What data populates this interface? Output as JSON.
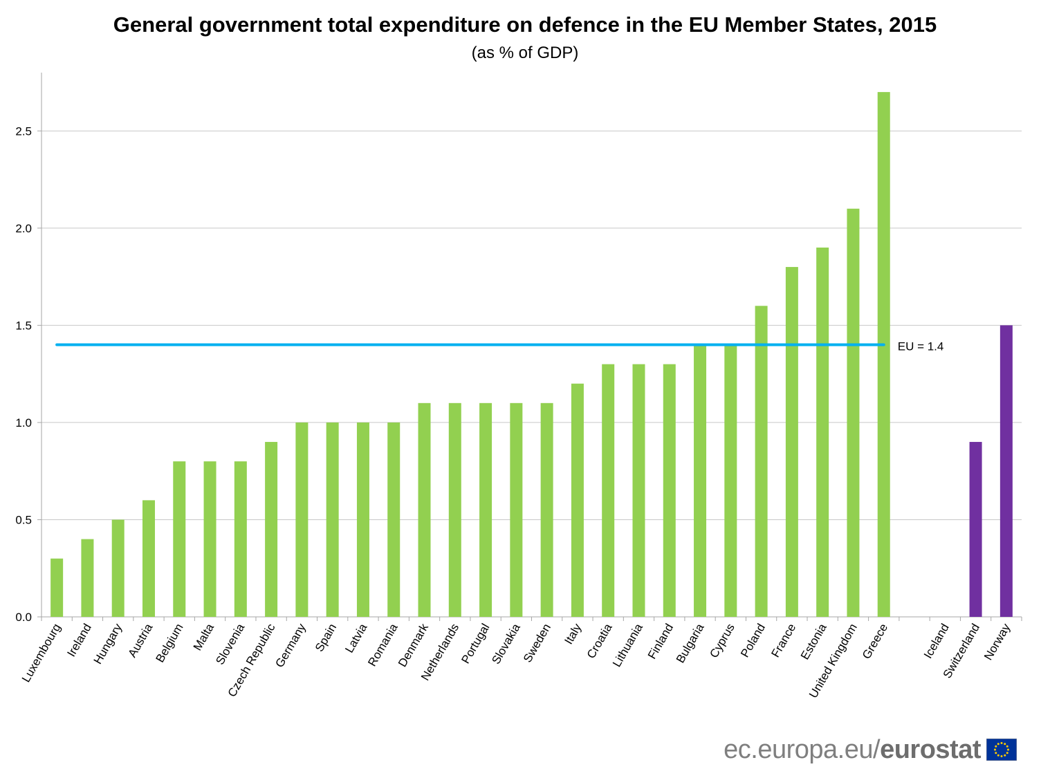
{
  "title": "General government total expenditure on defence in the EU Member States, 2015",
  "subtitle": "(as % of GDP)",
  "footer": {
    "site": "ec.europa.eu/",
    "brand": "eurostat",
    "logo_icon": "eu-flag-icon"
  },
  "colors": {
    "eu_bar": "#92d050",
    "non_eu_bar": "#7030a0",
    "reference_line": "#00b0f0",
    "grid": "#c8c8c8"
  },
  "chart_data": {
    "type": "bar",
    "title": "General government total expenditure on defence in the EU Member States, 2015",
    "subtitle": "(as % of GDP)",
    "xlabel": "",
    "ylabel": "",
    "ylim": [
      0,
      2.8
    ],
    "yticks": [
      0.0,
      0.5,
      1.0,
      1.5,
      2.0,
      2.5
    ],
    "ytick_labels": [
      "0.0",
      "0.5",
      "1.0",
      "1.5",
      "2.0",
      "2.5"
    ],
    "grid": true,
    "categories": [
      "Luxembourg",
      "Ireland",
      "Hungary",
      "Austria",
      "Belgium",
      "Malta",
      "Slovenia",
      "Czech Republic",
      "Germany",
      "Spain",
      "Latvia",
      "Romania",
      "Denmark",
      "Netherlands",
      "Portugal",
      "Slovakia",
      "Sweden",
      "Italy",
      "Croatia",
      "Lithuania",
      "Finland",
      "Bulgaria",
      "Cyprus",
      "Poland",
      "France",
      "Estonia",
      "United Kingdom",
      "Greece",
      "",
      "Iceland",
      "Switzerland",
      "Norway"
    ],
    "values": [
      0.3,
      0.4,
      0.5,
      0.6,
      0.8,
      0.8,
      0.8,
      0.9,
      1.0,
      1.0,
      1.0,
      1.0,
      1.1,
      1.1,
      1.1,
      1.1,
      1.1,
      1.2,
      1.3,
      1.3,
      1.3,
      1.4,
      1.4,
      1.6,
      1.8,
      1.9,
      2.1,
      2.7,
      null,
      null,
      0.9,
      1.5
    ],
    "groups": [
      "EU",
      "EU",
      "EU",
      "EU",
      "EU",
      "EU",
      "EU",
      "EU",
      "EU",
      "EU",
      "EU",
      "EU",
      "EU",
      "EU",
      "EU",
      "EU",
      "EU",
      "EU",
      "EU",
      "EU",
      "EU",
      "EU",
      "EU",
      "EU",
      "EU",
      "EU",
      "EU",
      "EU",
      "gap",
      "non-EU",
      "non-EU",
      "non-EU"
    ],
    "reference_line": {
      "value": 1.4,
      "label": "EU = 1.4",
      "from_category": 0,
      "to_category": 27
    }
  }
}
